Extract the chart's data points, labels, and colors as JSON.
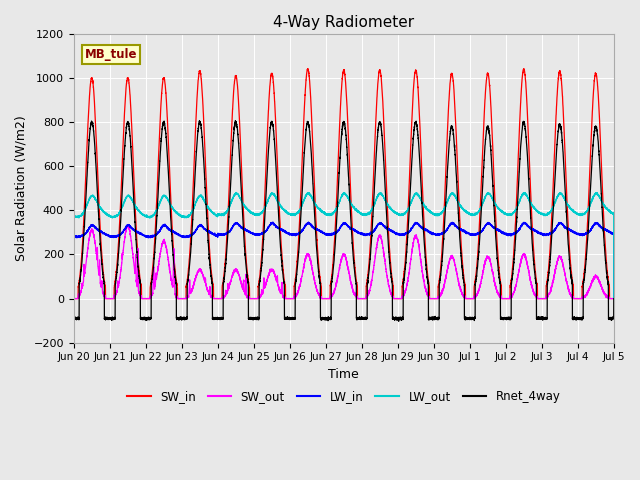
{
  "title": "4-Way Radiometer",
  "xlabel": "Time",
  "ylabel": "Solar Radiation (W/m2)",
  "ylim": [
    -200,
    1200
  ],
  "x_tick_labels": [
    "Jun 20",
    "Jun 21",
    "Jun 22",
    "Jun 23",
    "Jun 24",
    "Jun 25",
    "Jun 26",
    "Jun 27",
    "Jun 28",
    "Jun 29",
    "Jun 30",
    "Jul 1",
    "Jul 2",
    "Jul 3",
    "Jul 4",
    "Jul 5"
  ],
  "background_color": "#e8e8e8",
  "legend_colors": [
    "#ff0000",
    "#ff00ff",
    "#0000ff",
    "#00ffff",
    "#000000"
  ],
  "station_label": "MB_tule",
  "n_days": 15,
  "sw_in_peaks": [
    1000,
    1000,
    1000,
    1030,
    1010,
    1020,
    1040,
    1035,
    1035,
    1035,
    1020,
    1020,
    1040,
    1030,
    1020
  ],
  "sw_out_peaks": [
    310,
    330,
    260,
    130,
    130,
    130,
    200,
    200,
    285,
    285,
    190,
    190,
    200,
    190,
    100
  ],
  "rnet_peaks": [
    800,
    800,
    800,
    800,
    800,
    800,
    800,
    800,
    800,
    800,
    780,
    780,
    800,
    790,
    780
  ],
  "lw_in_base": 295,
  "lw_out_base": 390,
  "y_ticks": [
    -200,
    0,
    200,
    400,
    600,
    800,
    1000,
    1200
  ]
}
